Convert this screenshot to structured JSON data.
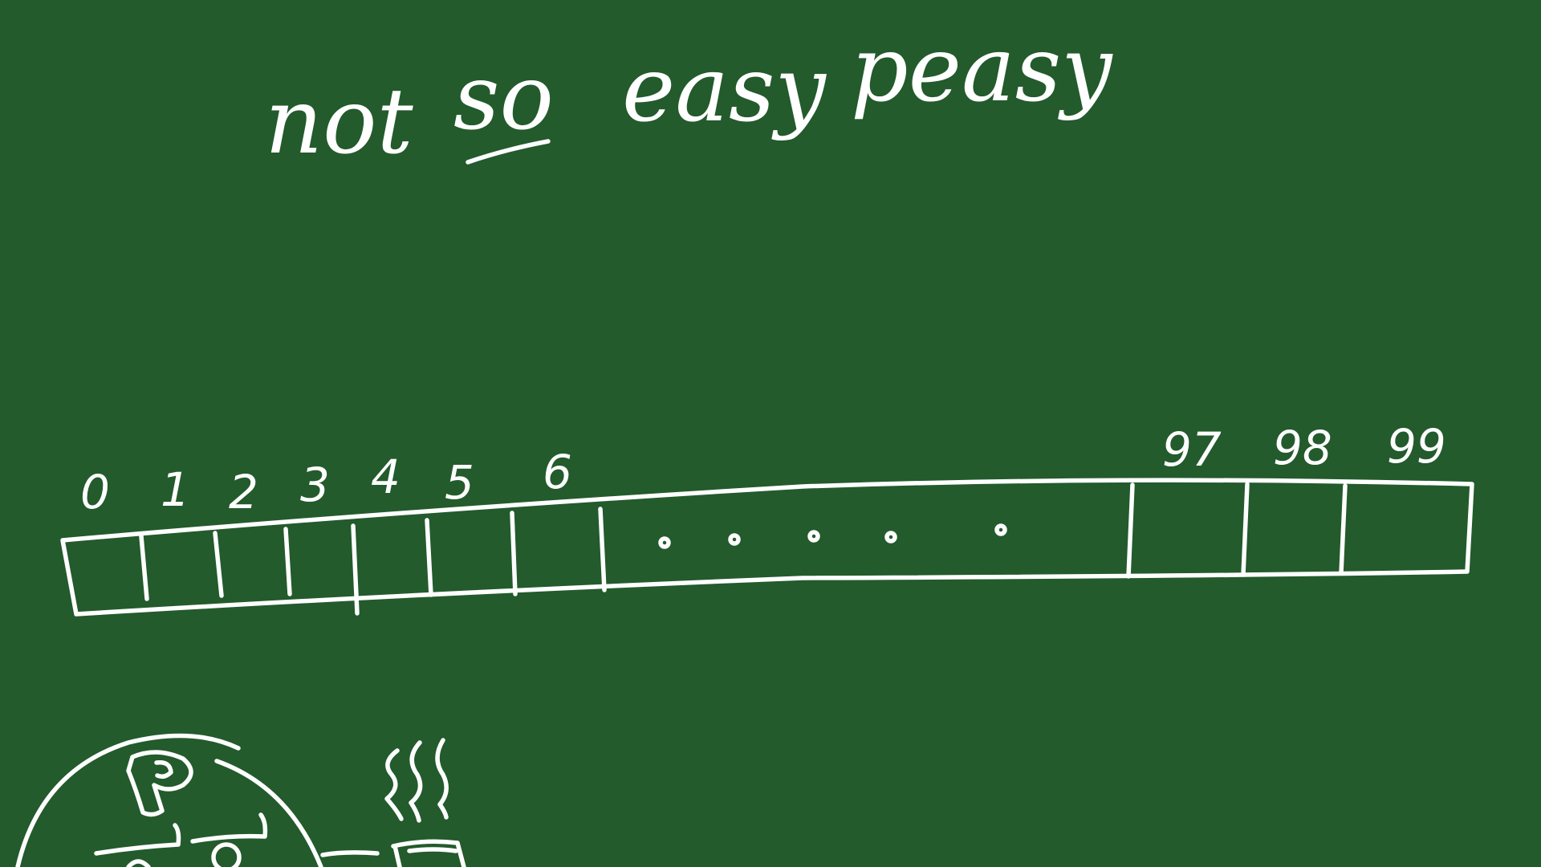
{
  "title": {
    "words": [
      "not",
      "so",
      "easy",
      "peasy"
    ],
    "underlined_word": "so"
  },
  "array": {
    "left_indices": [
      "0",
      "1",
      "2",
      "3",
      "4",
      "5",
      "6"
    ],
    "right_indices": [
      "97",
      "98",
      "99"
    ],
    "ellipsis_dots": 5
  },
  "colors": {
    "board": "#235b2c",
    "chalk": "#ffffff"
  },
  "icons": {
    "character": "pig-character-icon",
    "steam": "steam-icon",
    "cup": "cup-icon"
  }
}
